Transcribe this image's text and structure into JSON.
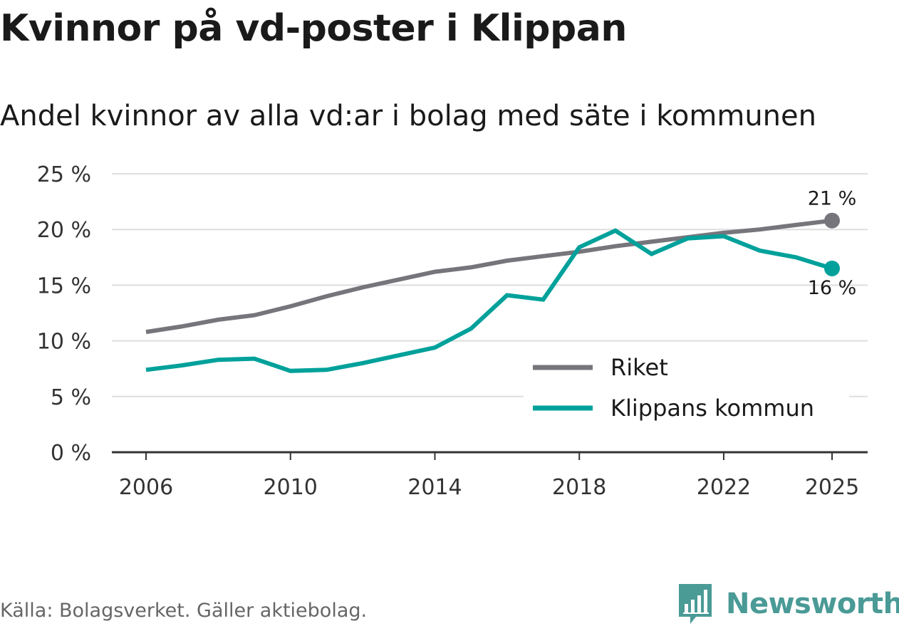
{
  "title": "Kvinnor på vd-poster i Klippan",
  "subtitle": "Andel kvinnor av alla vd:ar i bolag med säte i kommunen",
  "source": "Källa: Bolagsverket. Gäller aktiebolag.",
  "brand": {
    "name": "Newsworthy",
    "icon": "newsworthy-logo-icon",
    "color": "#4a9a96"
  },
  "chart_data": {
    "type": "line",
    "title": "Kvinnor på vd-poster i Klippan",
    "subtitle": "Andel kvinnor av alla vd:ar i bolag med säte i kommunen",
    "xlabel": "",
    "ylabel": "",
    "x": [
      2006,
      2007,
      2008,
      2009,
      2010,
      2011,
      2012,
      2013,
      2014,
      2015,
      2016,
      2017,
      2018,
      2019,
      2020,
      2021,
      2022,
      2023,
      2024,
      2025
    ],
    "xticks": [
      2006,
      2010,
      2014,
      2018,
      2022,
      2025
    ],
    "xtick_labels": [
      "2006",
      "2010",
      "2014",
      "2018",
      "2022",
      "2025"
    ],
    "xlim": [
      2006,
      2025
    ],
    "ylim": [
      0,
      25
    ],
    "yticks": [
      0,
      5,
      10,
      15,
      20,
      25
    ],
    "ytick_labels": [
      "0 %",
      "5 %",
      "10 %",
      "15 %",
      "20 %",
      "25 %"
    ],
    "grid": true,
    "legend_position": "bottom-right",
    "series": [
      {
        "name": "Riket",
        "color": "#76757c",
        "values": [
          10.8,
          11.3,
          11.9,
          12.3,
          13.1,
          14.0,
          14.8,
          15.5,
          16.2,
          16.6,
          17.2,
          17.6,
          18.0,
          18.5,
          18.9,
          19.3,
          19.7,
          20.0,
          20.4,
          20.8
        ],
        "end_label": "21 %",
        "end_label_position": "above"
      },
      {
        "name": "Klippans kommun",
        "color": "#00a19b",
        "values": [
          7.4,
          7.8,
          8.3,
          8.4,
          7.3,
          7.4,
          8.0,
          8.7,
          9.4,
          11.1,
          14.1,
          13.7,
          18.4,
          19.9,
          17.8,
          19.2,
          19.4,
          18.1,
          17.5,
          16.5
        ],
        "end_label": "16 %",
        "end_label_position": "below"
      }
    ]
  }
}
